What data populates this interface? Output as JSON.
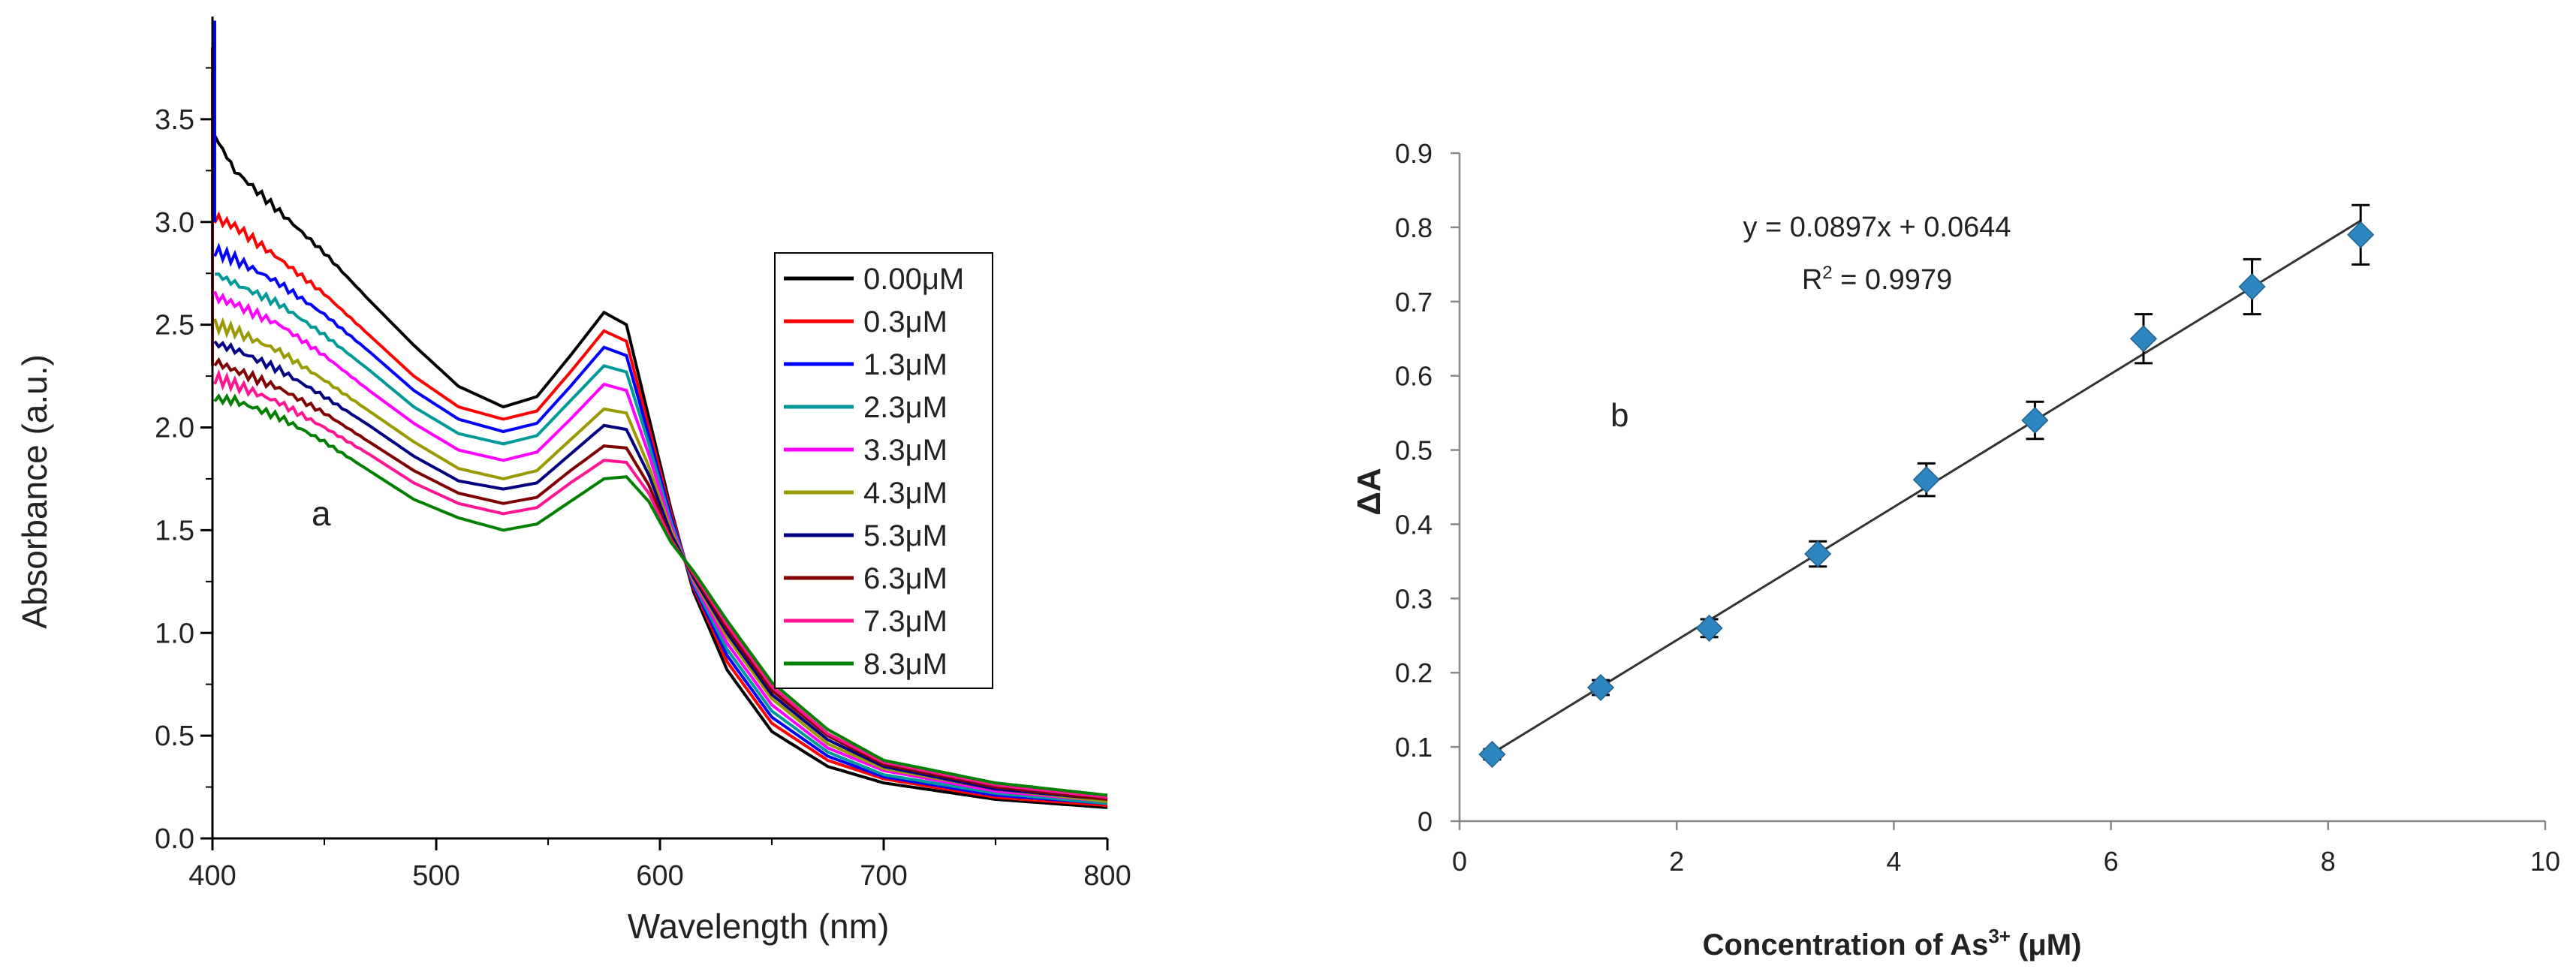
{
  "chart_data": [
    {
      "type": "line",
      "panel_label": "a",
      "xlabel": "Wavelength (nm)",
      "ylabel": "Absorbance (a.u.)",
      "xlim": [
        400,
        800
      ],
      "ylim": [
        0,
        4.0
      ],
      "xticks": [
        "400",
        "500",
        "600",
        "700",
        "800"
      ],
      "yticks": [
        "0.0",
        "0.5",
        "1.0",
        "1.5",
        "2.0",
        "2.5",
        "3.0",
        "3.5"
      ],
      "legend_position": "right",
      "series": [
        {
          "name": "0.00μM",
          "color": "#000000",
          "values": [
            [
              401,
              3.42
            ],
            [
              410,
              3.25
            ],
            [
              430,
              3.05
            ],
            [
              450,
              2.85
            ],
            [
              470,
              2.62
            ],
            [
              490,
              2.4
            ],
            [
              510,
              2.2
            ],
            [
              530,
              2.1
            ],
            [
              545,
              2.15
            ],
            [
              560,
              2.35
            ],
            [
              575,
              2.56
            ],
            [
              585,
              2.5
            ],
            [
              595,
              2.05
            ],
            [
              605,
              1.6
            ],
            [
              615,
              1.2
            ],
            [
              630,
              0.82
            ],
            [
              650,
              0.52
            ],
            [
              675,
              0.35
            ],
            [
              700,
              0.27
            ],
            [
              750,
              0.19
            ],
            [
              800,
              0.15
            ]
          ]
        },
        {
          "name": "0.3μM",
          "color": "#ff0000",
          "values": [
            [
              401,
              3.02
            ],
            [
              410,
              2.98
            ],
            [
              430,
              2.82
            ],
            [
              450,
              2.65
            ],
            [
              470,
              2.45
            ],
            [
              490,
              2.25
            ],
            [
              510,
              2.1
            ],
            [
              530,
              2.04
            ],
            [
              545,
              2.08
            ],
            [
              560,
              2.27
            ],
            [
              575,
              2.47
            ],
            [
              585,
              2.42
            ],
            [
              595,
              2.0
            ],
            [
              605,
              1.58
            ],
            [
              615,
              1.22
            ],
            [
              630,
              0.86
            ],
            [
              650,
              0.56
            ],
            [
              675,
              0.38
            ],
            [
              700,
              0.29
            ],
            [
              750,
              0.2
            ],
            [
              800,
              0.16
            ]
          ]
        },
        {
          "name": "1.3μM",
          "color": "#0000ff",
          "values": [
            [
              401,
              2.86
            ],
            [
              410,
              2.82
            ],
            [
              430,
              2.7
            ],
            [
              450,
              2.55
            ],
            [
              470,
              2.37
            ],
            [
              490,
              2.18
            ],
            [
              510,
              2.04
            ],
            [
              530,
              1.98
            ],
            [
              545,
              2.02
            ],
            [
              560,
              2.2
            ],
            [
              575,
              2.39
            ],
            [
              585,
              2.35
            ],
            [
              595,
              1.96
            ],
            [
              605,
              1.56
            ],
            [
              615,
              1.23
            ],
            [
              630,
              0.89
            ],
            [
              650,
              0.59
            ],
            [
              675,
              0.4
            ],
            [
              700,
              0.3
            ],
            [
              750,
              0.21
            ],
            [
              800,
              0.17
            ]
          ]
        },
        {
          "name": "2.3μM",
          "color": "#009999",
          "values": [
            [
              401,
              2.75
            ],
            [
              410,
              2.7
            ],
            [
              430,
              2.6
            ],
            [
              450,
              2.45
            ],
            [
              470,
              2.28
            ],
            [
              490,
              2.1
            ],
            [
              510,
              1.97
            ],
            [
              530,
              1.92
            ],
            [
              545,
              1.96
            ],
            [
              560,
              2.13
            ],
            [
              575,
              2.3
            ],
            [
              585,
              2.27
            ],
            [
              595,
              1.92
            ],
            [
              605,
              1.54
            ],
            [
              615,
              1.24
            ],
            [
              630,
              0.92
            ],
            [
              650,
              0.62
            ],
            [
              675,
              0.42
            ],
            [
              700,
              0.31
            ],
            [
              750,
              0.22
            ],
            [
              800,
              0.17
            ]
          ]
        },
        {
          "name": "3.3μM",
          "color": "#ff00ff",
          "values": [
            [
              401,
              2.64
            ],
            [
              410,
              2.6
            ],
            [
              430,
              2.5
            ],
            [
              450,
              2.35
            ],
            [
              470,
              2.18
            ],
            [
              490,
              2.02
            ],
            [
              510,
              1.89
            ],
            [
              530,
              1.84
            ],
            [
              545,
              1.88
            ],
            [
              560,
              2.04
            ],
            [
              575,
              2.21
            ],
            [
              585,
              2.18
            ],
            [
              595,
              1.87
            ],
            [
              605,
              1.52
            ],
            [
              615,
              1.25
            ],
            [
              630,
              0.95
            ],
            [
              650,
              0.65
            ],
            [
              675,
              0.44
            ],
            [
              700,
              0.33
            ],
            [
              750,
              0.23
            ],
            [
              800,
              0.18
            ]
          ]
        },
        {
          "name": "4.3μM",
          "color": "#999900",
          "values": [
            [
              401,
              2.5
            ],
            [
              410,
              2.47
            ],
            [
              430,
              2.37
            ],
            [
              450,
              2.23
            ],
            [
              470,
              2.08
            ],
            [
              490,
              1.93
            ],
            [
              510,
              1.8
            ],
            [
              530,
              1.75
            ],
            [
              545,
              1.79
            ],
            [
              560,
              1.94
            ],
            [
              575,
              2.09
            ],
            [
              585,
              2.07
            ],
            [
              595,
              1.81
            ],
            [
              605,
              1.5
            ],
            [
              615,
              1.26
            ],
            [
              630,
              0.98
            ],
            [
              650,
              0.68
            ],
            [
              675,
              0.46
            ],
            [
              700,
              0.34
            ],
            [
              750,
              0.24
            ],
            [
              800,
              0.18
            ]
          ]
        },
        {
          "name": "5.3μM",
          "color": "#000080",
          "values": [
            [
              401,
              2.41
            ],
            [
              410,
              2.38
            ],
            [
              430,
              2.28
            ],
            [
              450,
              2.15
            ],
            [
              470,
              2.01
            ],
            [
              490,
              1.86
            ],
            [
              510,
              1.74
            ],
            [
              530,
              1.7
            ],
            [
              545,
              1.73
            ],
            [
              560,
              1.87
            ],
            [
              575,
              2.01
            ],
            [
              585,
              1.99
            ],
            [
              595,
              1.77
            ],
            [
              605,
              1.48
            ],
            [
              615,
              1.27
            ],
            [
              630,
              1.0
            ],
            [
              650,
              0.7
            ],
            [
              675,
              0.48
            ],
            [
              700,
              0.35
            ],
            [
              750,
              0.24
            ],
            [
              800,
              0.19
            ]
          ]
        },
        {
          "name": "6.3μM",
          "color": "#800000",
          "values": [
            [
              401,
              2.32
            ],
            [
              410,
              2.28
            ],
            [
              430,
              2.19
            ],
            [
              450,
              2.07
            ],
            [
              470,
              1.93
            ],
            [
              490,
              1.79
            ],
            [
              510,
              1.68
            ],
            [
              530,
              1.63
            ],
            [
              545,
              1.66
            ],
            [
              560,
              1.79
            ],
            [
              575,
              1.91
            ],
            [
              585,
              1.9
            ],
            [
              595,
              1.72
            ],
            [
              605,
              1.46
            ],
            [
              615,
              1.28
            ],
            [
              630,
              1.02
            ],
            [
              650,
              0.72
            ],
            [
              675,
              0.5
            ],
            [
              700,
              0.36
            ],
            [
              750,
              0.25
            ],
            [
              800,
              0.19
            ]
          ]
        },
        {
          "name": "7.3μM",
          "color": "#ff1493",
          "values": [
            [
              401,
              2.24
            ],
            [
              410,
              2.21
            ],
            [
              430,
              2.12
            ],
            [
              450,
              2.0
            ],
            [
              470,
              1.87
            ],
            [
              490,
              1.73
            ],
            [
              510,
              1.63
            ],
            [
              530,
              1.58
            ],
            [
              545,
              1.61
            ],
            [
              560,
              1.73
            ],
            [
              575,
              1.84
            ],
            [
              585,
              1.83
            ],
            [
              595,
              1.68
            ],
            [
              605,
              1.45
            ],
            [
              615,
              1.29
            ],
            [
              630,
              1.04
            ],
            [
              650,
              0.74
            ],
            [
              675,
              0.51
            ],
            [
              700,
              0.37
            ],
            [
              750,
              0.26
            ],
            [
              800,
              0.2
            ]
          ]
        },
        {
          "name": "8.3μM",
          "color": "#008000",
          "values": [
            [
              401,
              2.14
            ],
            [
              410,
              2.13
            ],
            [
              430,
              2.05
            ],
            [
              450,
              1.93
            ],
            [
              470,
              1.79
            ],
            [
              490,
              1.65
            ],
            [
              510,
              1.56
            ],
            [
              530,
              1.5
            ],
            [
              545,
              1.53
            ],
            [
              560,
              1.64
            ],
            [
              575,
              1.75
            ],
            [
              585,
              1.76
            ],
            [
              595,
              1.64
            ],
            [
              605,
              1.44
            ],
            [
              615,
              1.3
            ],
            [
              630,
              1.06
            ],
            [
              650,
              0.76
            ],
            [
              675,
              0.53
            ],
            [
              700,
              0.38
            ],
            [
              750,
              0.27
            ],
            [
              800,
              0.21
            ]
          ]
        }
      ]
    },
    {
      "type": "scatter",
      "panel_label": "b",
      "xlabel": "Concentration of As",
      "xlabel_sup": "3+",
      "xlabel_unit": "(μM)",
      "ylabel": "ΔA",
      "xlim": [
        0,
        10
      ],
      "ylim": [
        0,
        0.9
      ],
      "xticks": [
        "0",
        "2",
        "4",
        "6",
        "8",
        "10"
      ],
      "yticks": [
        "0",
        "0.1",
        "0.2",
        "0.3",
        "0.4",
        "0.5",
        "0.6",
        "0.7",
        "0.8",
        "0.9"
      ],
      "equation": "y = 0.0897x + 0.0644",
      "r2_label": "R",
      "r2_sup": "2",
      "r2_value": " = 0.9979",
      "trendline": {
        "slope": 0.0897,
        "intercept": 0.0644
      },
      "marker_color": "#2e86c1",
      "points": [
        {
          "x": 0.3,
          "y": 0.09,
          "err": 0.007
        },
        {
          "x": 1.3,
          "y": 0.18,
          "err": 0.01
        },
        {
          "x": 2.3,
          "y": 0.26,
          "err": 0.012
        },
        {
          "x": 3.3,
          "y": 0.36,
          "err": 0.017
        },
        {
          "x": 4.3,
          "y": 0.46,
          "err": 0.022
        },
        {
          "x": 5.3,
          "y": 0.54,
          "err": 0.025
        },
        {
          "x": 6.3,
          "y": 0.65,
          "err": 0.033
        },
        {
          "x": 7.3,
          "y": 0.72,
          "err": 0.037
        },
        {
          "x": 8.3,
          "y": 0.79,
          "err": 0.04
        }
      ]
    }
  ]
}
